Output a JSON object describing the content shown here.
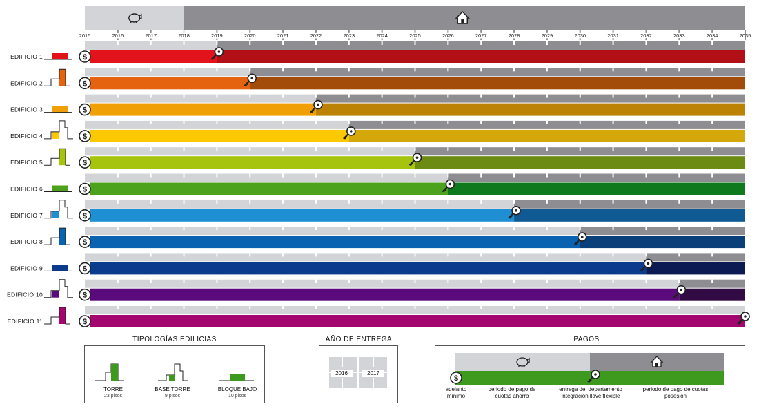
{
  "chart_data": {
    "type": "gantt",
    "years": [
      "2015",
      "2016",
      "2017",
      "2018",
      "2019",
      "2020",
      "2021",
      "2022",
      "2023",
      "2024",
      "2025",
      "2026",
      "2027",
      "2028",
      "2029",
      "2030",
      "2031",
      "2032",
      "2033",
      "2034",
      "2035"
    ],
    "header_periods": [
      {
        "name": "periodo de pago de cuotas ahorro",
        "icon": "piggy-bank-icon",
        "start": 2015,
        "end": 2018
      },
      {
        "name": "periodo de pago de cuotas posesión",
        "icon": "home-icon",
        "start": 2018,
        "end": 2035
      }
    ],
    "buildings": [
      {
        "label": "EDIFICIO 1",
        "type": "bajo",
        "delivery": 2019,
        "color": "#e2131b",
        "dark": "#b20f16"
      },
      {
        "label": "EDIFICIO 2",
        "type": "torre",
        "delivery": 2020,
        "color": "#e5620e",
        "dark": "#a34b09"
      },
      {
        "label": "EDIFICIO 3",
        "type": "bajo",
        "delivery": 2022,
        "color": "#f0a004",
        "dark": "#bb8206"
      },
      {
        "label": "EDIFICIO 4",
        "type": "base",
        "delivery": 2023,
        "color": "#fcc802",
        "dark": "#d4a80a"
      },
      {
        "label": "EDIFICIO 5",
        "type": "torre",
        "delivery": 2025,
        "color": "#a6c40d",
        "dark": "#6b8b12"
      },
      {
        "label": "EDIFICIO 6",
        "type": "bajo",
        "delivery": 2026,
        "color": "#4ca21c",
        "dark": "#0f7a1d"
      },
      {
        "label": "EDIFICIO 7",
        "type": "base",
        "delivery": 2028,
        "color": "#1e8fd2",
        "dark": "#0f5a93"
      },
      {
        "label": "EDIFICIO 8",
        "type": "torre",
        "delivery": 2030,
        "color": "#0a63b0",
        "dark": "#0a3f7a"
      },
      {
        "label": "EDIFICIO 9",
        "type": "bajo",
        "delivery": 2032,
        "color": "#0b3b8c",
        "dark": "#0b1a53"
      },
      {
        "label": "EDIFICIO 10",
        "type": "base",
        "delivery": 2033,
        "color": "#5b0a7c",
        "dark": "#320b45"
      },
      {
        "label": "EDIFICIO 11",
        "type": "torre",
        "delivery": 2035,
        "color": "#a3066e",
        "dark": "#7d0b56"
      }
    ]
  },
  "legend": {
    "tipologias": {
      "title": "TIPOLOGÍAS EDILICIAS",
      "items": [
        {
          "name": "TORRE",
          "sub": "23 pisos"
        },
        {
          "name": "BASE TORRE",
          "sub": "9 pisos"
        },
        {
          "name": "BLOQUE BAJO",
          "sub": "10 pisos"
        }
      ]
    },
    "entrega": {
      "title": "AÑO DE ENTREGA",
      "years": [
        "2016",
        "2017"
      ]
    },
    "pagos": {
      "title": "PAGOS",
      "captions": [
        {
          "text": "adelanto mínimo"
        },
        {
          "text": "periodo de pago de cuotas ahorro"
        },
        {
          "text": "entrega del departamento integración llave flexible"
        },
        {
          "text": "periodo de pago de cuotas posesión"
        }
      ]
    }
  },
  "colors": {
    "light_gray": "#d3d4d8",
    "dark_gray": "#8e8d91",
    "legend_green": "#3d9a1e"
  }
}
